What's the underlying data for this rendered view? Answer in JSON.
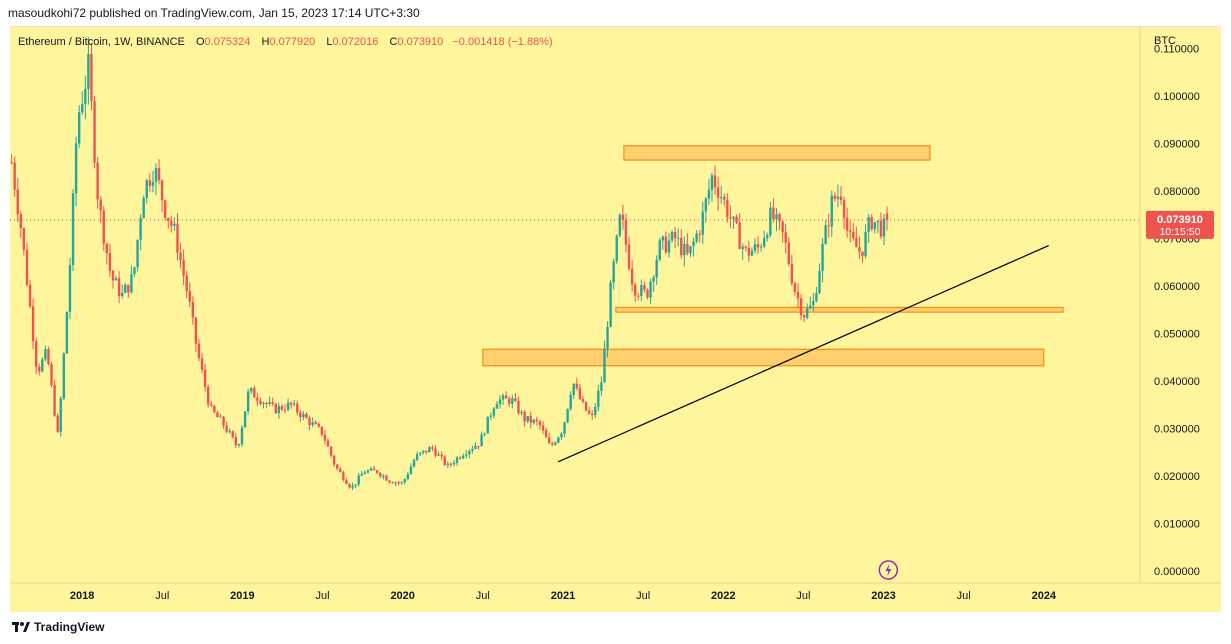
{
  "header": {
    "published": "masoudkohi72 published on TradingView.com, Jan 15, 2023 17:14 UTC+3:30"
  },
  "legend": {
    "symbol": "Ethereum / Bitcoin, 1W, BINANCE",
    "open_label": "O",
    "open": "0.075324",
    "high_label": "H",
    "high": "0.077920",
    "low_label": "L",
    "low": "0.072016",
    "close_label": "C",
    "close": "0.073910",
    "change": "−0.001418 (−1.88%)"
  },
  "price_tag": {
    "price": "0.073910",
    "countdown": "10:15:50"
  },
  "footer": {
    "brand": "TradingView"
  },
  "colors": {
    "background": "#fff59d",
    "up": "#26a69a",
    "down": "#ef5350",
    "zone_fill": "#ffb74d",
    "zone_border": "#f57c00",
    "trendline": "#000000"
  },
  "chart_data": {
    "type": "candlestick",
    "title": "Ethereum / Bitcoin, 1W, BINANCE",
    "currency_label": "BTC",
    "y_ticks": [
      "0.110000",
      "0.100000",
      "0.090000",
      "0.080000",
      "0.070000",
      "0.060000",
      "0.050000",
      "0.040000",
      "0.030000",
      "0.020000",
      "0.010000",
      "0.000000"
    ],
    "y_tick_values": [
      0.11,
      0.1,
      0.09,
      0.08,
      0.07,
      0.06,
      0.05,
      0.04,
      0.03,
      0.02,
      0.01,
      0.0
    ],
    "ylim": [
      -0.0025,
      0.1145
    ],
    "x_ticks": [
      {
        "label": "2018",
        "t": 2018.0,
        "bold": true
      },
      {
        "label": "Jul",
        "t": 2018.5,
        "bold": false
      },
      {
        "label": "2019",
        "t": 2019.0,
        "bold": true
      },
      {
        "label": "Jul",
        "t": 2019.5,
        "bold": false
      },
      {
        "label": "2020",
        "t": 2020.0,
        "bold": true
      },
      {
        "label": "Jul",
        "t": 2020.5,
        "bold": false
      },
      {
        "label": "2021",
        "t": 2021.0,
        "bold": true
      },
      {
        "label": "Jul",
        "t": 2021.5,
        "bold": false
      },
      {
        "label": "2022",
        "t": 2022.0,
        "bold": true
      },
      {
        "label": "Jul",
        "t": 2022.5,
        "bold": false
      },
      {
        "label": "2023",
        "t": 2023.0,
        "bold": true
      },
      {
        "label": "Jul",
        "t": 2023.5,
        "bold": false
      },
      {
        "label": "2024",
        "t": 2024.0,
        "bold": true
      }
    ],
    "xlim": [
      2017.55,
      2024.6
    ],
    "last_price": 0.07391,
    "zones": [
      {
        "t1": 2021.38,
        "t2": 2023.29,
        "low": 0.0865,
        "high": 0.0895
      },
      {
        "t1": 2021.33,
        "t2": 2024.12,
        "low": 0.0545,
        "high": 0.0555
      },
      {
        "t1": 2020.5,
        "t2": 2024.0,
        "low": 0.0432,
        "high": 0.0467
      }
    ],
    "trendline": {
      "t1": 2020.97,
      "p1": 0.023,
      "t2": 2024.03,
      "p2": 0.0685
    },
    "anchors": [
      [
        2017.56,
        0.086
      ],
      [
        2017.62,
        0.072
      ],
      [
        2017.72,
        0.042
      ],
      [
        2017.78,
        0.046
      ],
      [
        2017.85,
        0.028
      ],
      [
        2017.92,
        0.062
      ],
      [
        2017.97,
        0.095
      ],
      [
        2018.04,
        0.106
      ],
      [
        2018.1,
        0.078
      ],
      [
        2018.18,
        0.062
      ],
      [
        2018.25,
        0.058
      ],
      [
        2018.32,
        0.062
      ],
      [
        2018.38,
        0.08
      ],
      [
        2018.45,
        0.085
      ],
      [
        2018.52,
        0.076
      ],
      [
        2018.58,
        0.071
      ],
      [
        2018.66,
        0.058
      ],
      [
        2018.72,
        0.046
      ],
      [
        2018.8,
        0.034
      ],
      [
        2018.88,
        0.031
      ],
      [
        2018.97,
        0.026
      ],
      [
        2019.04,
        0.038
      ],
      [
        2019.12,
        0.036
      ],
      [
        2019.2,
        0.034
      ],
      [
        2019.3,
        0.035
      ],
      [
        2019.4,
        0.032
      ],
      [
        2019.5,
        0.029
      ],
      [
        2019.58,
        0.022
      ],
      [
        2019.68,
        0.0175
      ],
      [
        2019.76,
        0.021
      ],
      [
        2019.84,
        0.021
      ],
      [
        2019.92,
        0.019
      ],
      [
        2020.0,
        0.0185
      ],
      [
        2020.08,
        0.024
      ],
      [
        2020.18,
        0.026
      ],
      [
        2020.28,
        0.022
      ],
      [
        2020.38,
        0.025
      ],
      [
        2020.48,
        0.027
      ],
      [
        2020.58,
        0.036
      ],
      [
        2020.68,
        0.036
      ],
      [
        2020.76,
        0.032
      ],
      [
        2020.85,
        0.031
      ],
      [
        2020.92,
        0.026
      ],
      [
        2021.0,
        0.03
      ],
      [
        2021.06,
        0.04
      ],
      [
        2021.12,
        0.035
      ],
      [
        2021.18,
        0.032
      ],
      [
        2021.24,
        0.04
      ],
      [
        2021.3,
        0.06
      ],
      [
        2021.36,
        0.075
      ],
      [
        2021.44,
        0.06
      ],
      [
        2021.52,
        0.058
      ],
      [
        2021.6,
        0.068
      ],
      [
        2021.7,
        0.07
      ],
      [
        2021.78,
        0.066
      ],
      [
        2021.86,
        0.073
      ],
      [
        2021.93,
        0.083
      ],
      [
        2021.99,
        0.079
      ],
      [
        2022.06,
        0.073
      ],
      [
        2022.14,
        0.067
      ],
      [
        2022.22,
        0.068
      ],
      [
        2022.3,
        0.075
      ],
      [
        2022.38,
        0.07
      ],
      [
        2022.44,
        0.06
      ],
      [
        2022.5,
        0.054
      ],
      [
        2022.56,
        0.056
      ],
      [
        2022.62,
        0.068
      ],
      [
        2022.68,
        0.078
      ],
      [
        2022.74,
        0.08
      ],
      [
        2022.78,
        0.07
      ],
      [
        2022.86,
        0.067
      ],
      [
        2022.92,
        0.074
      ],
      [
        2023.0,
        0.072
      ],
      [
        2023.04,
        0.07391
      ]
    ]
  }
}
